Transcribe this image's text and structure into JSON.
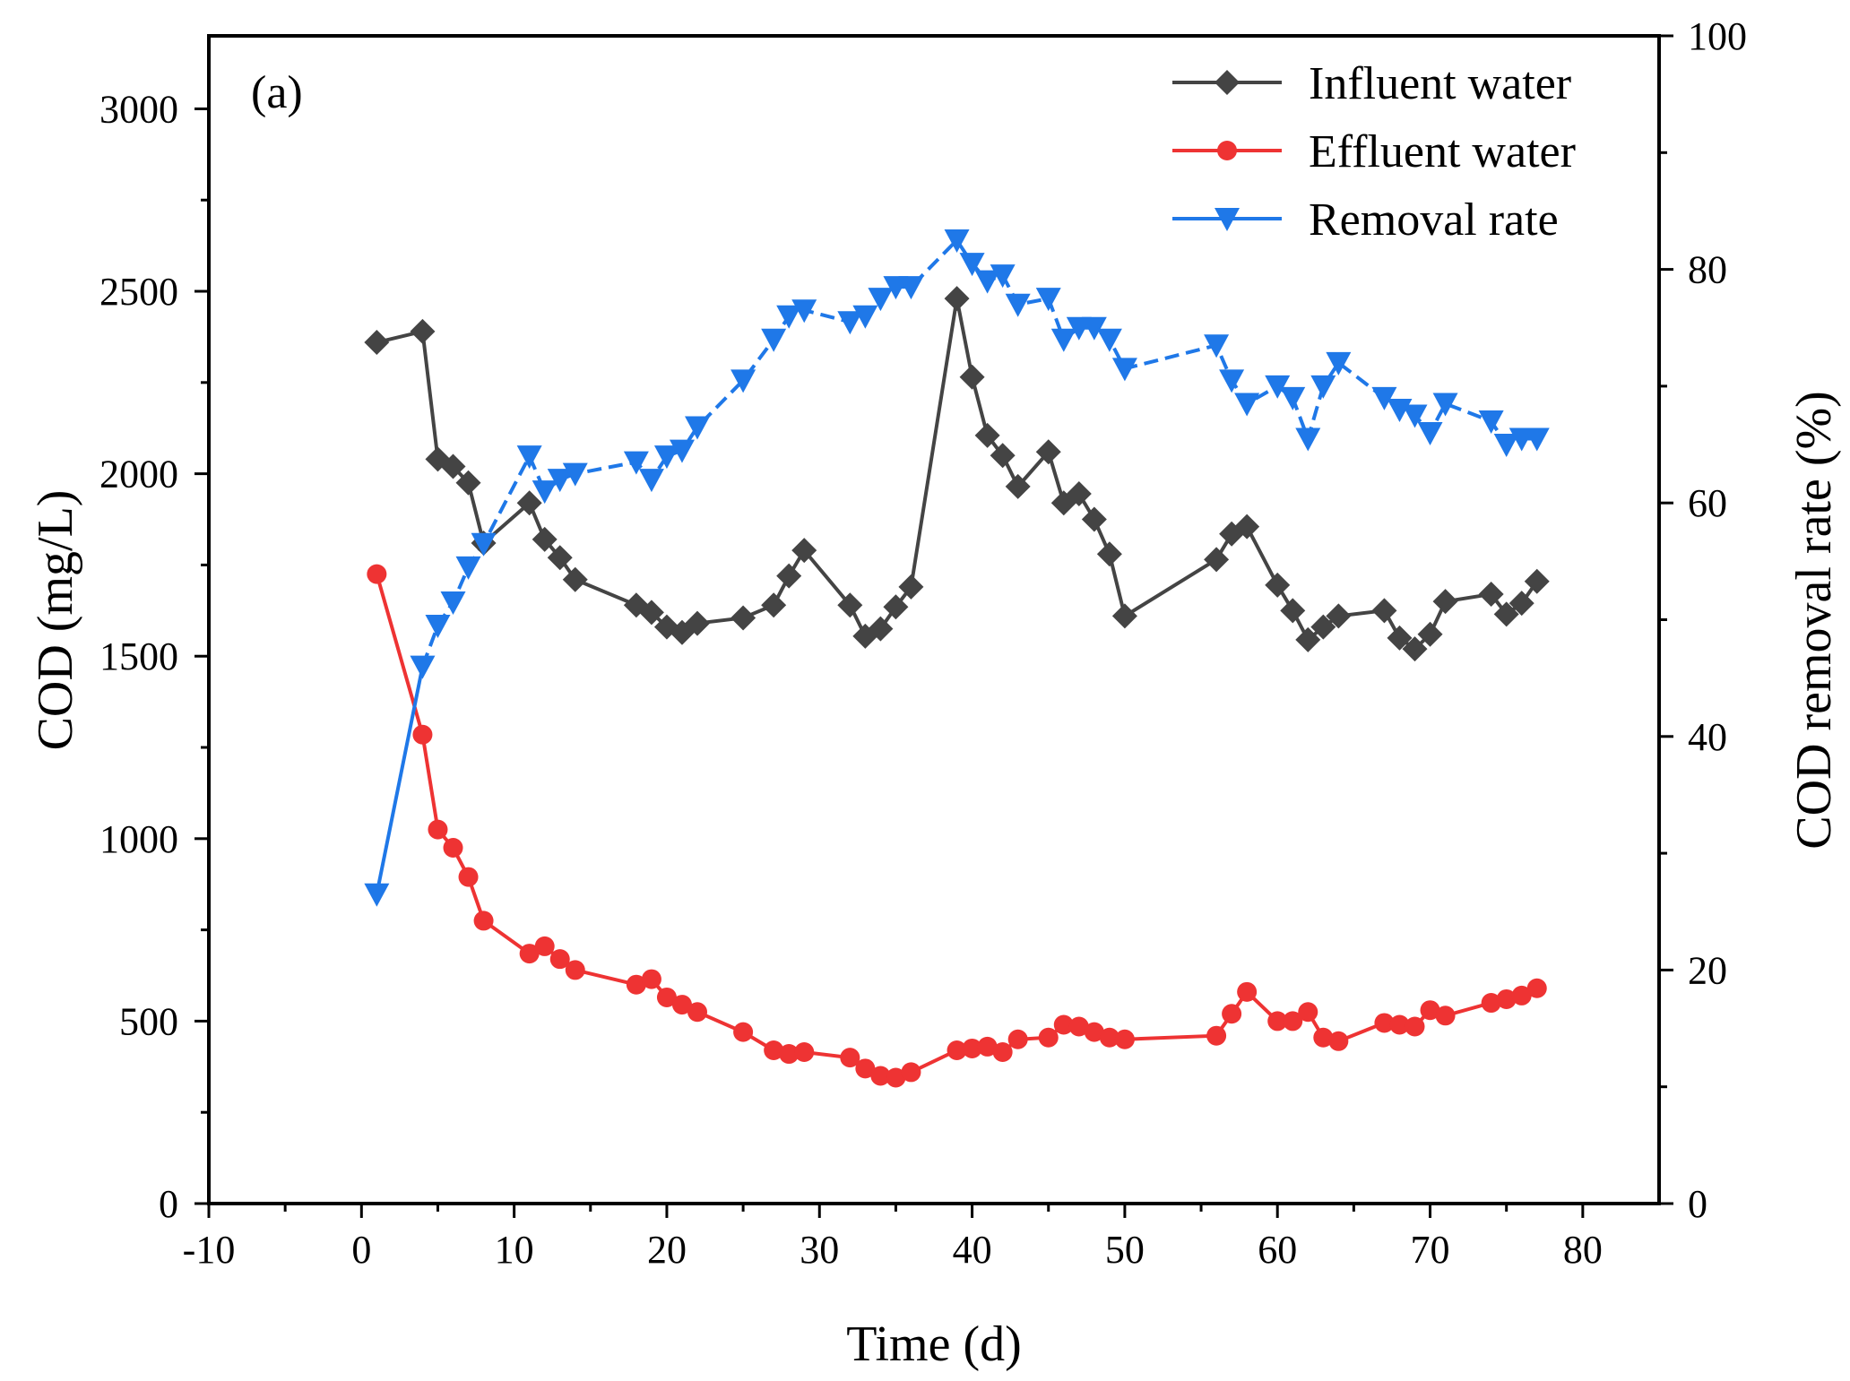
{
  "chart_data": {
    "type": "line",
    "panel_label": "(a)",
    "xlabel": "Time (d)",
    "ylabel": "COD (mg/L)",
    "y2label": "COD removal rate (%)",
    "xlim": [
      -10,
      85
    ],
    "ylim": [
      0,
      3200
    ],
    "y2lim": [
      0,
      100
    ],
    "x_ticks": [
      -10,
      0,
      10,
      20,
      30,
      40,
      50,
      60,
      70,
      80
    ],
    "y_ticks": [
      0,
      500,
      1000,
      1500,
      2000,
      2500,
      3000
    ],
    "y2_ticks": [
      0,
      20,
      40,
      60,
      80,
      100
    ],
    "legend_position": "top-right",
    "series": [
      {
        "name": "Influent water",
        "axis": "left",
        "color": "#444444",
        "marker": "diamond",
        "x": [
          1,
          4,
          5,
          6,
          7,
          8,
          11,
          12,
          13,
          14,
          18,
          19,
          20,
          21,
          22,
          25,
          27,
          28,
          29,
          32,
          33,
          34,
          35,
          36,
          39,
          40,
          41,
          42,
          43,
          45,
          46,
          47,
          48,
          49,
          50,
          56,
          57,
          58,
          60,
          61,
          62,
          63,
          64,
          67,
          68,
          69,
          70,
          71,
          74,
          75,
          76,
          77
        ],
        "values": [
          2360,
          2390,
          2040,
          2020,
          1975,
          1810,
          1920,
          1820,
          1770,
          1710,
          1640,
          1620,
          1580,
          1565,
          1590,
          1605,
          1640,
          1720,
          1790,
          1640,
          1555,
          1575,
          1635,
          1690,
          2480,
          2265,
          2105,
          2050,
          1965,
          2060,
          1920,
          1945,
          1875,
          1780,
          1610,
          1765,
          1835,
          1855,
          1695,
          1625,
          1545,
          1580,
          1610,
          1625,
          1550,
          1520,
          1560,
          1650,
          1670,
          1615,
          1645,
          1705
        ]
      },
      {
        "name": "Effluent water",
        "axis": "left",
        "color": "#ee3333",
        "marker": "circle",
        "x": [
          1,
          4,
          5,
          6,
          7,
          8,
          11,
          12,
          13,
          14,
          18,
          19,
          20,
          21,
          22,
          25,
          27,
          28,
          29,
          32,
          33,
          34,
          35,
          36,
          39,
          40,
          41,
          42,
          43,
          45,
          46,
          47,
          48,
          49,
          50,
          56,
          57,
          58,
          60,
          61,
          62,
          63,
          64,
          67,
          68,
          69,
          70,
          71,
          74,
          75,
          76,
          77
        ],
        "values": [
          1725,
          1285,
          1025,
          975,
          895,
          775,
          685,
          705,
          670,
          640,
          600,
          615,
          565,
          545,
          525,
          470,
          420,
          410,
          415,
          400,
          370,
          350,
          345,
          360,
          420,
          425,
          430,
          415,
          450,
          455,
          490,
          485,
          470,
          455,
          450,
          460,
          520,
          580,
          500,
          500,
          525,
          455,
          445,
          495,
          490,
          485,
          530,
          515,
          550,
          560,
          570,
          590
        ]
      },
      {
        "name": "Removal rate",
        "axis": "right",
        "color": "#1f78e8",
        "marker": "triangle-down",
        "dashed_from_index": 1,
        "x": [
          1,
          4,
          5,
          6,
          7,
          8,
          11,
          12,
          13,
          14,
          18,
          19,
          20,
          21,
          22,
          25,
          27,
          28,
          29,
          32,
          33,
          34,
          35,
          36,
          39,
          40,
          41,
          42,
          43,
          45,
          46,
          47,
          48,
          49,
          50,
          56,
          57,
          58,
          60,
          61,
          62,
          63,
          64,
          67,
          68,
          69,
          70,
          71,
          74,
          75,
          76,
          77
        ],
        "values": [
          26.5,
          46,
          49.5,
          51.5,
          54.5,
          56.5,
          64,
          61,
          62,
          62.5,
          63.5,
          62,
          64,
          64.5,
          66.5,
          70.5,
          74,
          76,
          76.5,
          75.5,
          76,
          77.5,
          78.5,
          78.5,
          82.5,
          80.5,
          79,
          79.5,
          77,
          77.5,
          74,
          75,
          75,
          74,
          71.5,
          73.5,
          70.5,
          68.5,
          70,
          69,
          65.5,
          70,
          72,
          69,
          68,
          67.5,
          66,
          68.5,
          67,
          65,
          65.5,
          65.5
        ]
      }
    ]
  }
}
